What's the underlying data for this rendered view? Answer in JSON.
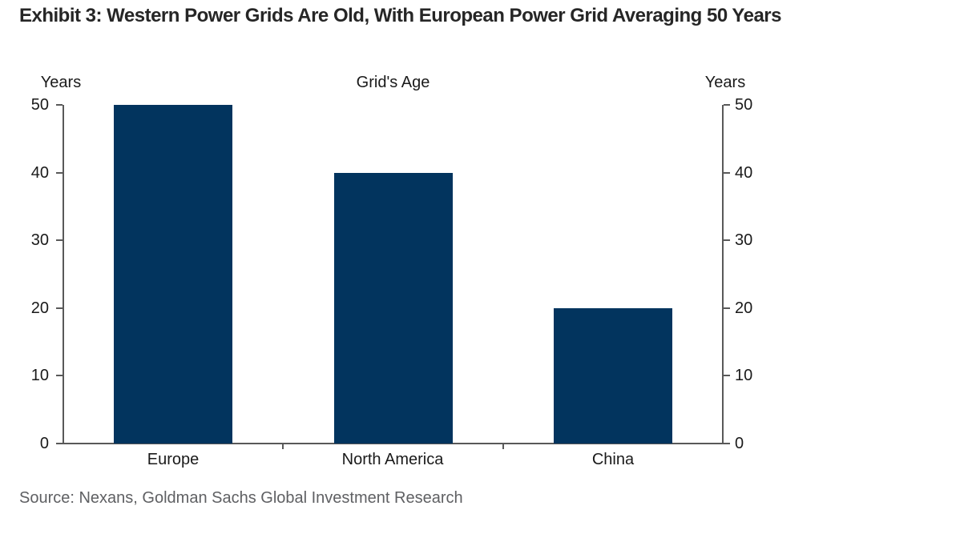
{
  "header": {
    "title": "Exhibit 3: Western Power Grids Are Old, With European Power Grid Averaging 50 Years"
  },
  "chart_data": {
    "type": "bar",
    "title": "Grid's Age",
    "categories": [
      "Europe",
      "North America",
      "China"
    ],
    "values": [
      50,
      40,
      20
    ],
    "left_axis_label": "Years",
    "right_axis_label": "Years",
    "xlabel": "",
    "ylabel": "Years",
    "ylim": [
      0,
      50
    ],
    "yticks": [
      0,
      10,
      20,
      30,
      40,
      50
    ],
    "grid": false,
    "legend": "none",
    "bar_color": "#02345e",
    "axis_color": "#595959",
    "text_color": "#1a1a1a"
  },
  "footer": {
    "source": "Source: Nexans, Goldman Sachs Global Investment Research"
  }
}
